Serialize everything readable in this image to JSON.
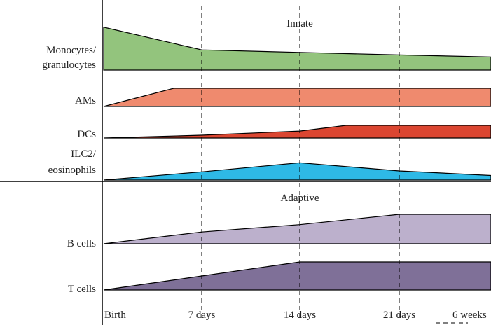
{
  "sections": {
    "innate": "Innate",
    "adaptive": "Adaptive"
  },
  "timepoints": [
    "Birth",
    "7 days",
    "14 days",
    "21 days",
    "6 weeks"
  ],
  "rows": [
    {
      "id": "monocytes",
      "lines": [
        "Monocytes/",
        "granulocytes"
      ],
      "color": "#93c47d",
      "levels": [
        0.85,
        0.4,
        0.35,
        0.3,
        0.26
      ]
    },
    {
      "id": "ams",
      "lines": [
        "AMs"
      ],
      "color": "#ef8a6e",
      "levels": [
        0.0,
        1.0,
        1.0,
        1.0,
        1.0
      ]
    },
    {
      "id": "dcs",
      "lines": [
        "DCs"
      ],
      "color": "#db4631",
      "levels": [
        0.0,
        0.22,
        0.55,
        1.0,
        1.0
      ]
    },
    {
      "id": "ilc2",
      "lines": [
        "ILC2/",
        "eosinophils"
      ],
      "color": "#2eb9e6",
      "levels": [
        0.0,
        0.45,
        0.95,
        0.5,
        0.25
      ]
    },
    {
      "id": "bcells",
      "lines": [
        "B cells"
      ],
      "color": "#bcb0cc",
      "levels": [
        0.0,
        0.4,
        0.65,
        1.0,
        1.0
      ]
    },
    {
      "id": "tcells",
      "lines": [
        "T cells"
      ],
      "color": "#7f7098",
      "levels": [
        0.0,
        0.5,
        1.0,
        1.0,
        1.0
      ]
    }
  ]
}
